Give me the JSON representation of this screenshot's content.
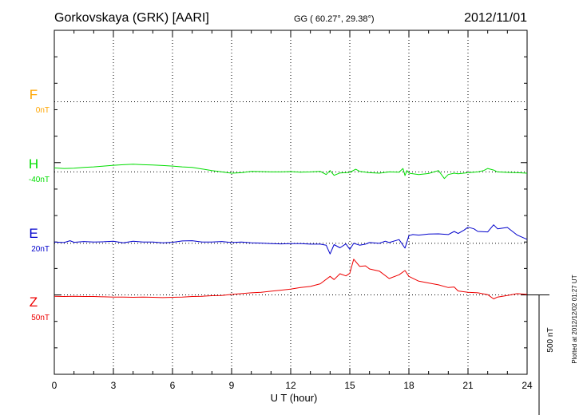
{
  "header": {
    "station": "Gorkovskaya (GRK)  [AARI]",
    "coords": "GG ( 60.27°,  29.38°)",
    "date": "2012/11/01"
  },
  "footer_note": "Plotted at 2012/12/02 01:27 UT",
  "chart_data": {
    "type": "line",
    "xlabel": "U T (hour)",
    "xlim": [
      0,
      24
    ],
    "x_ticks": [
      0,
      3,
      6,
      9,
      12,
      15,
      18,
      21,
      24
    ],
    "x_tick_labels": [
      "0",
      "3",
      "6",
      "9",
      "12",
      "15",
      "18",
      "21",
      "24"
    ],
    "y_unit": "nT",
    "y_span_nT": 1300,
    "y_top_nT": 1000,
    "scale_bar": {
      "label": "500 nT",
      "value_nT": 500
    },
    "series": [
      {
        "name": "F",
        "baseline_label": "0nT",
        "color": "#ffa500",
        "baseline_nT": 730,
        "visible_trace": false,
        "x": [],
        "y": []
      },
      {
        "name": "H",
        "baseline_label": "-40nT",
        "color": "#00dd00",
        "baseline_nT": 465,
        "x": [
          0,
          0.5,
          1,
          1.5,
          2,
          2.5,
          3,
          3.5,
          4,
          4.5,
          5,
          5.5,
          6,
          6.5,
          7,
          7.5,
          8,
          8.5,
          9,
          9.5,
          10,
          10.5,
          11,
          11.5,
          12,
          12.5,
          13,
          13.5,
          13.8,
          14,
          14.2,
          14.5,
          15,
          15.3,
          15.5,
          16,
          16.5,
          17,
          17.5,
          17.7,
          17.8,
          17.9,
          18,
          18.5,
          19,
          19.5,
          19.8,
          20,
          20.3,
          20.5,
          21,
          21.5,
          21.8,
          22,
          22.3,
          22.5,
          23,
          23.5,
          24
        ],
        "y": [
          480,
          478,
          479,
          482,
          484,
          487,
          490,
          492,
          494,
          492,
          491,
          489,
          487,
          484,
          482,
          476,
          470,
          465,
          460,
          462,
          467,
          466,
          465,
          465,
          466,
          464,
          465,
          467,
          455,
          470,
          452,
          461,
          463,
          475,
          467,
          462,
          460,
          465,
          464,
          478,
          451,
          470,
          460,
          455,
          459,
          470,
          440,
          455,
          460,
          458,
          462,
          465,
          470,
          478,
          472,
          465,
          463,
          462,
          460
        ]
      },
      {
        "name": "E",
        "baseline_label": "20nT",
        "color": "#0000cc",
        "baseline_nT": 195,
        "x": [
          0,
          0.5,
          0.8,
          1,
          1.5,
          2,
          2.5,
          3,
          3.5,
          4,
          4.5,
          5,
          5.5,
          6,
          6.5,
          7,
          7.5,
          8,
          8.5,
          9,
          9.5,
          10,
          10.5,
          11,
          11.5,
          12,
          12.5,
          13,
          13.5,
          13.8,
          14,
          14.2,
          14.5,
          14.8,
          15,
          15.2,
          15.5,
          15.8,
          16,
          16.5,
          16.8,
          17,
          17.5,
          17.8,
          18,
          18.2,
          18.5,
          19,
          19.5,
          20,
          20.3,
          20.5,
          20.8,
          21,
          21.3,
          21.5,
          22,
          22.3,
          22.5,
          23,
          23.5,
          24
        ],
        "y": [
          200,
          198,
          205,
          199,
          202,
          200,
          201,
          203,
          197,
          203,
          200,
          200,
          197,
          199,
          204,
          205,
          200,
          200,
          202,
          198,
          200,
          197,
          196,
          194,
          193,
          194,
          194,
          192,
          192,
          188,
          155,
          190,
          178,
          193,
          172,
          195,
          188,
          192,
          198,
          195,
          203,
          198,
          209,
          177,
          224,
          228,
          226,
          230,
          231,
          228,
          240,
          232,
          245,
          256,
          250,
          240,
          238,
          265,
          250,
          255,
          226,
          210
        ]
      },
      {
        "name": "Z",
        "baseline_label": "50nT",
        "color": "#ee0000",
        "baseline_nT": 0,
        "x": [
          0,
          0.5,
          1,
          1.5,
          2,
          2.5,
          3,
          3.5,
          4,
          4.5,
          5,
          5.5,
          6,
          6.5,
          7,
          7.5,
          8,
          8.5,
          9,
          9.5,
          10,
          10.5,
          11,
          11.5,
          12,
          12.5,
          13,
          13.5,
          14,
          14.2,
          14.5,
          14.8,
          15,
          15.2,
          15.5,
          15.8,
          16,
          16.5,
          17,
          17.5,
          17.8,
          18,
          18.5,
          19,
          19.5,
          20,
          20.3,
          20.5,
          21,
          21.5,
          22,
          22.3,
          22.5,
          23,
          23.5,
          24
        ],
        "y": [
          -5,
          -6,
          -5,
          -6,
          -6,
          -7,
          -8,
          -8,
          -9,
          -8,
          -9,
          -10,
          -9,
          -8,
          -6,
          -5,
          -3,
          -2,
          2,
          5,
          8,
          10,
          14,
          18,
          22,
          28,
          32,
          42,
          70,
          58,
          80,
          72,
          82,
          135,
          108,
          110,
          98,
          90,
          62,
          76,
          92,
          70,
          52,
          45,
          38,
          28,
          30,
          15,
          10,
          8,
          1,
          -15,
          -8,
          -2,
          5,
          2
        ]
      }
    ]
  }
}
